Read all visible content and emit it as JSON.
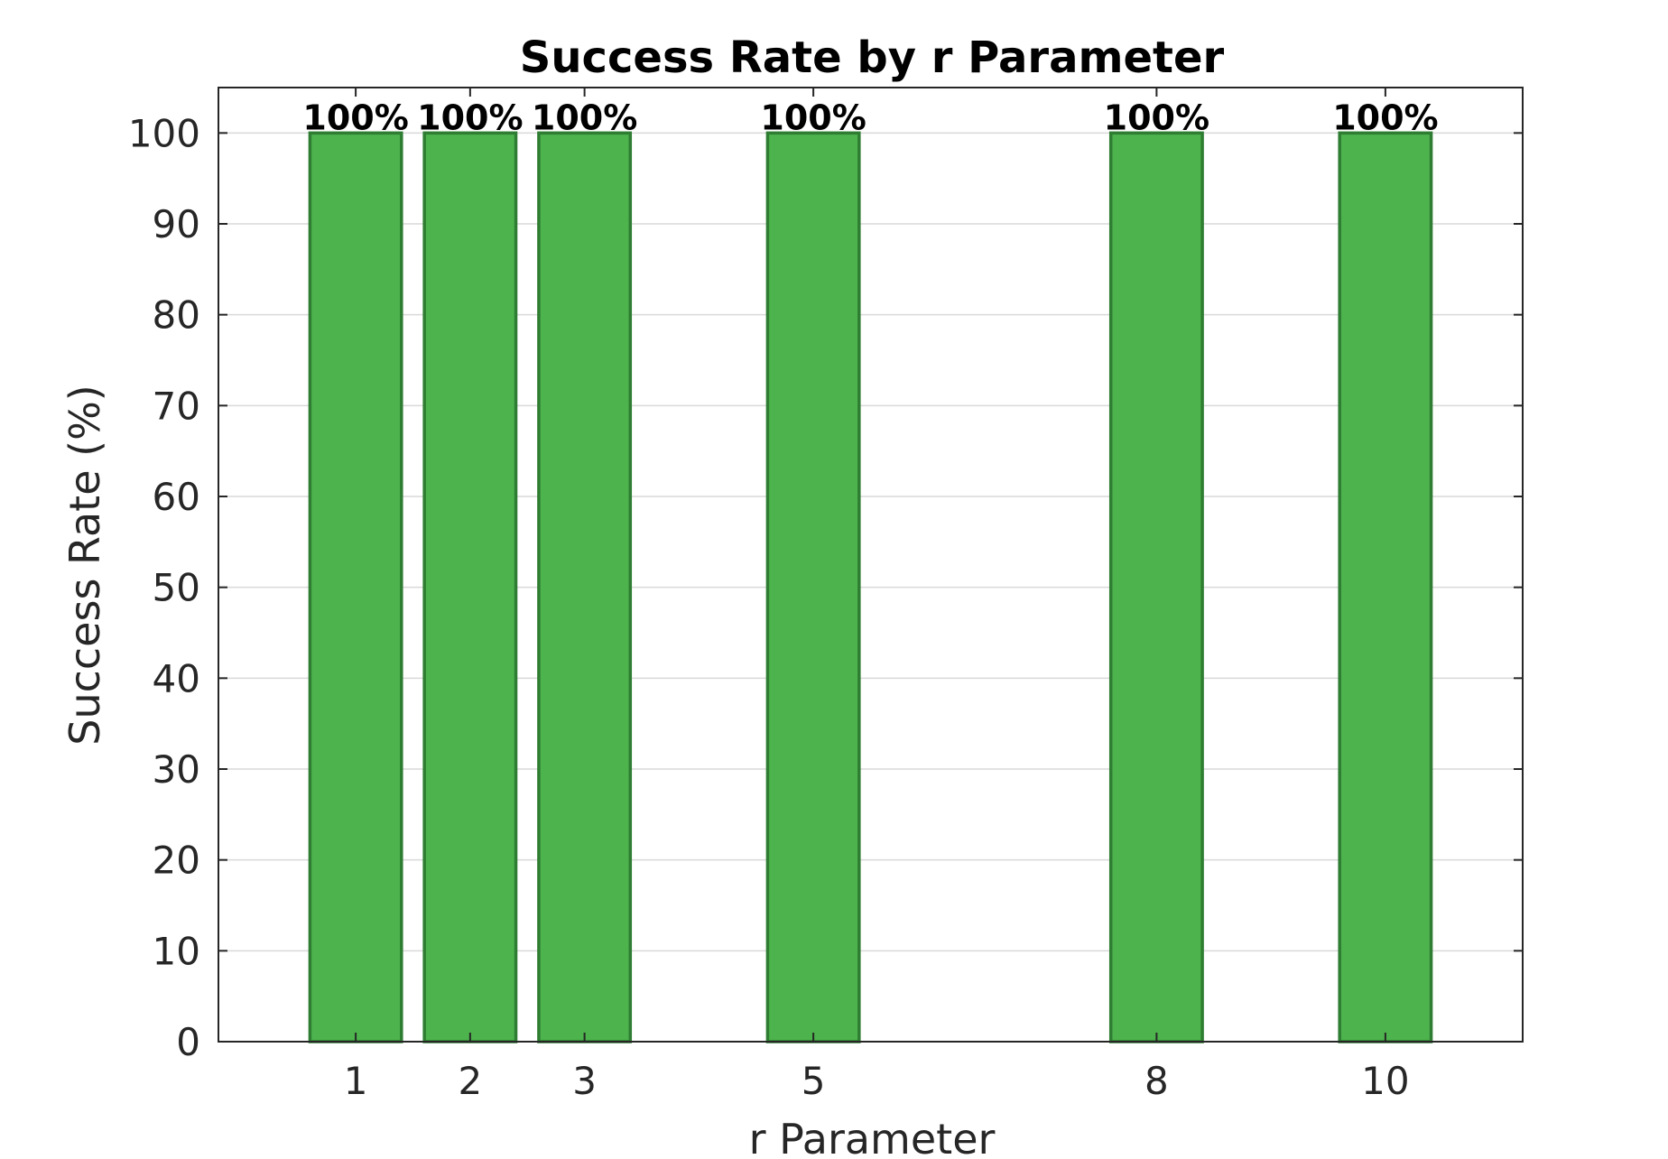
{
  "chart_data": {
    "type": "bar",
    "title": "Success Rate by r Parameter",
    "xlabel": "r Parameter",
    "ylabel": "Success Rate (%)",
    "categories": [
      "1",
      "2",
      "3",
      "5",
      "8",
      "10"
    ],
    "x": [
      1,
      2,
      3,
      5,
      8,
      10
    ],
    "values": [
      100,
      100,
      100,
      100,
      100,
      100
    ],
    "data_labels": [
      "100%",
      "100%",
      "100%",
      "100%",
      "100%",
      "100%"
    ],
    "ylim": [
      0,
      105
    ],
    "xlim": [
      -0.2,
      11.2
    ],
    "yticks": [
      0,
      10,
      20,
      30,
      40,
      50,
      60,
      70,
      80,
      90,
      100
    ],
    "ytick_labels": [
      "0",
      "10",
      "20",
      "30",
      "40",
      "50",
      "60",
      "70",
      "80",
      "90",
      "100"
    ],
    "grid": true,
    "legend": false,
    "colors": {
      "bar_fill": "#4db34d",
      "bar_edge": "#2e7d32",
      "grid": "#d9d9d9",
      "axis": "#262626"
    }
  }
}
